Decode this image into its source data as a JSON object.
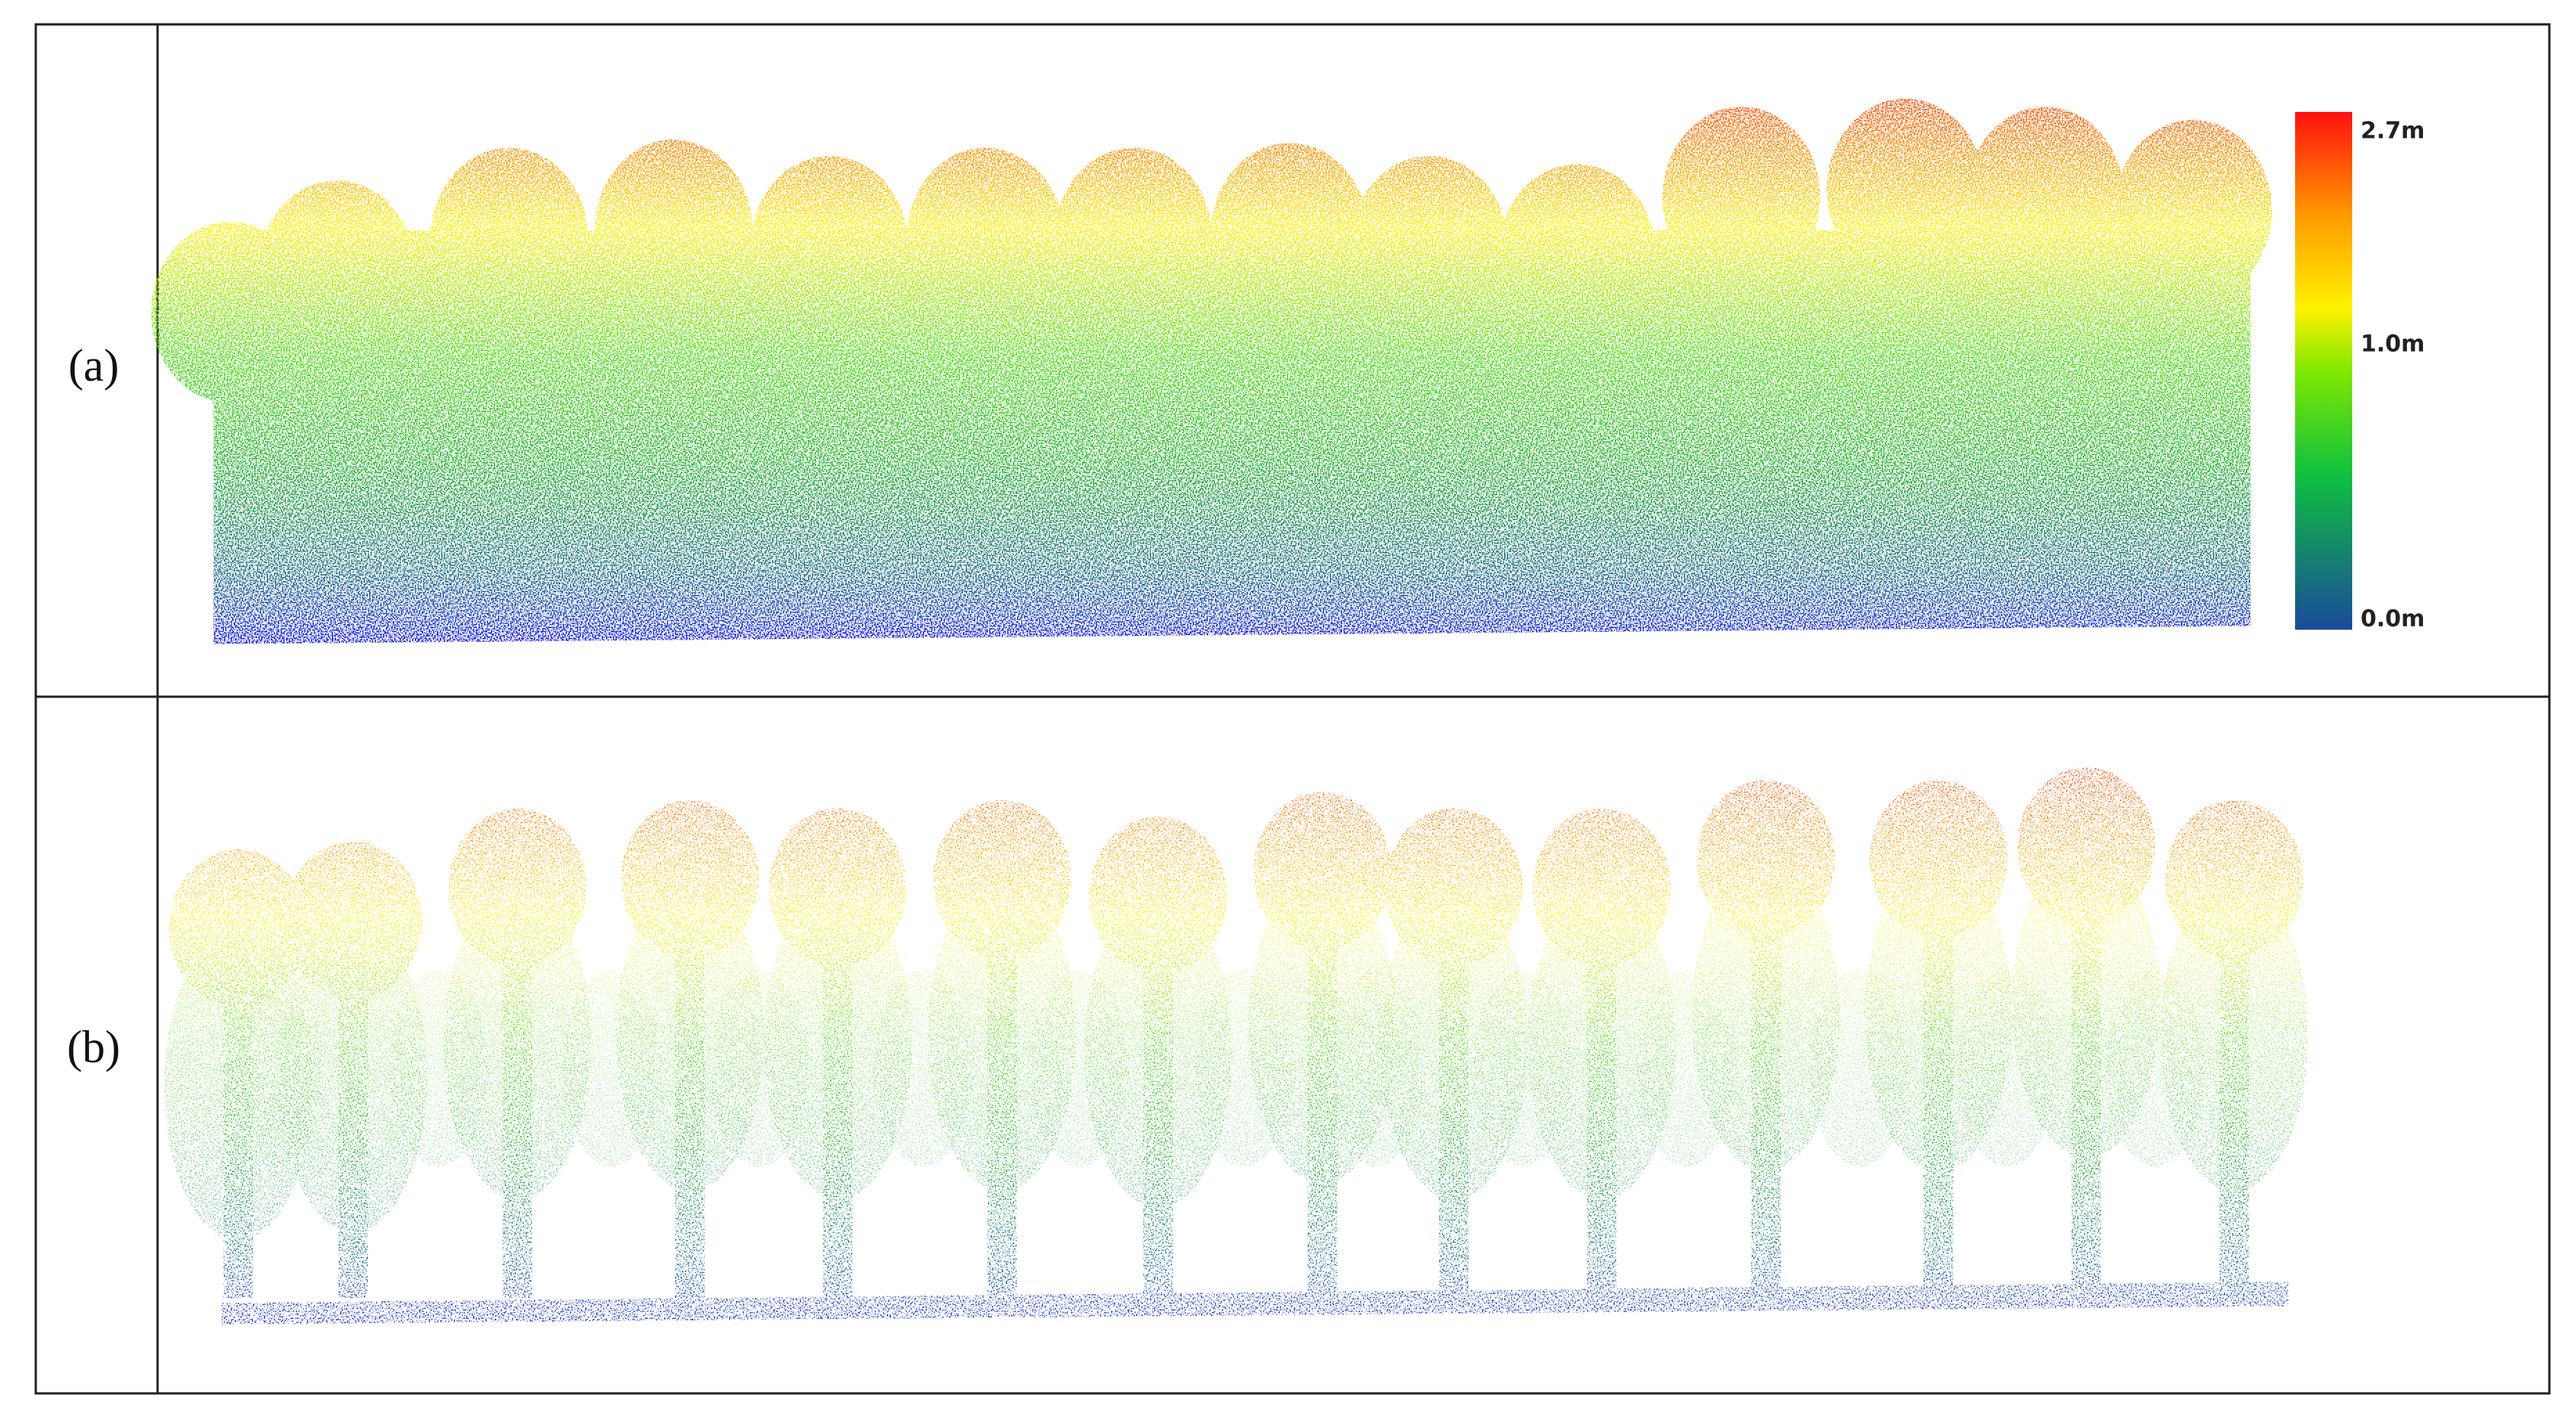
{
  "panels": [
    {
      "label": "(a)"
    },
    {
      "label": "(b)"
    }
  ],
  "legend": {
    "labels": [
      "2.7m",
      "1.0m",
      "0.0m"
    ]
  }
}
